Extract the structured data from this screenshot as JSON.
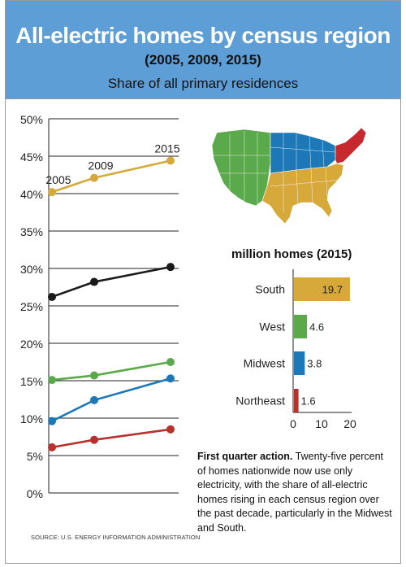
{
  "header": {
    "title": "All-electric homes by census region",
    "years": "(2005, 2009, 2015)",
    "subtitle": "Share of all primary residences"
  },
  "chart_data": [
    {
      "type": "line",
      "title": "All-electric homes by census region",
      "subtitle": "Share of all primary residences",
      "x": [
        "2005",
        "2009",
        "2015"
      ],
      "ylim": [
        0,
        50
      ],
      "yticks": [
        "0%",
        "5%",
        "10%",
        "15%",
        "20%",
        "25%",
        "30%",
        "35%",
        "40%",
        "45%",
        "50%"
      ],
      "series": [
        {
          "color": "#d6a93a",
          "values": [
            40.2,
            42.1,
            44.4
          ]
        },
        {
          "color": "#1a1a1a",
          "values": [
            26.2,
            28.2,
            30.2
          ]
        },
        {
          "color": "#5aa94b",
          "values": [
            15.1,
            15.7,
            17.5
          ]
        },
        {
          "color": "#1d78b8",
          "values": [
            9.6,
            12.4,
            15.3
          ]
        },
        {
          "color": "#b8322c",
          "values": [
            6.1,
            7.1,
            8.5
          ]
        }
      ],
      "point_labels": [
        "2005",
        "2009",
        "2015"
      ],
      "grid": true
    },
    {
      "type": "bar",
      "orientation": "horizontal",
      "title": "million homes (2015)",
      "categories": [
        "South",
        "West",
        "Midwest",
        "Northeast"
      ],
      "values": [
        19.7,
        4.6,
        3.8,
        1.6
      ],
      "value_labels": [
        "19.7",
        "4.6",
        "3.8",
        "1.6"
      ],
      "colors": [
        "#d6a93a",
        "#5aa94b",
        "#1d78b8",
        "#b8322c"
      ],
      "xlim": [
        0,
        20
      ],
      "xticks": [
        "0",
        "10",
        "20"
      ]
    }
  ],
  "caption": {
    "lead": "First quarter action.",
    "text": " Twenty-five percent of homes nationwide now use only electricity, with the share of all-electric homes rising in each census region over the past decade, particularly in the Midwest and South."
  },
  "source": "SOURCE: U.S. ENERGY INFORMATION ADMINISTRATION",
  "map": {
    "colors": {
      "west": "#5aa94b",
      "midwest": "#1d78b8",
      "south": "#d6a93a",
      "northeast": "#c62a2f"
    }
  }
}
